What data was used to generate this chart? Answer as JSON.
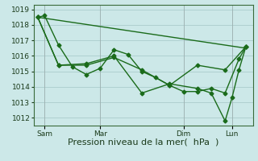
{
  "bg_color": "#cce8e8",
  "grid_color": "#aacccc",
  "line_color": "#1a6b1a",
  "marker": "D",
  "marker_size": 2.5,
  "linewidth": 1.0,
  "ylim": [
    1011.5,
    1019.3
  ],
  "yticks": [
    1012,
    1013,
    1014,
    1015,
    1016,
    1017,
    1018,
    1019
  ],
  "xlabel": "Pression niveau de la mer(  hPa  )",
  "xlabel_fontsize": 8,
  "tick_fontsize": 6.5,
  "series1_x": [
    0,
    0.5,
    1.5,
    2.5,
    3.5,
    4.5,
    5.5,
    6.5,
    7.5,
    8.5,
    9.5,
    10.5,
    11.5,
    12.5,
    13.5,
    14.5,
    15.0
  ],
  "series1_y": [
    1018.5,
    1018.6,
    1016.7,
    1015.3,
    1014.8,
    1015.2,
    1016.4,
    1016.1,
    1015.0,
    1014.6,
    1014.1,
    1013.7,
    1013.7,
    1013.9,
    1013.6,
    1015.8,
    1016.6
  ],
  "series2_x": [
    0,
    1.5,
    3.5,
    5.5,
    7.5,
    9.5,
    11.5,
    13.5,
    15.0
  ],
  "series2_y": [
    1018.5,
    1015.4,
    1015.4,
    1015.9,
    1015.1,
    1014.1,
    1015.4,
    1015.1,
    1016.6
  ],
  "series3_x": [
    0,
    1.5,
    3.5,
    5.5,
    7.5,
    9.5,
    11.5,
    12.5,
    13.5,
    14.0,
    14.5,
    15.0
  ],
  "series3_y": [
    1018.5,
    1015.4,
    1015.5,
    1016.0,
    1013.6,
    1014.2,
    1013.9,
    1013.6,
    1011.8,
    1013.3,
    1015.1,
    1016.6
  ],
  "trend_x": [
    0,
    15.0
  ],
  "trend_y": [
    1018.5,
    1016.5
  ],
  "xtick_positions": [
    0.5,
    4.5,
    10.5,
    14.0
  ],
  "xtick_labels": [
    "Sam",
    "Mar",
    "Dim",
    "Lun"
  ],
  "xlim": [
    -0.3,
    15.5
  ]
}
